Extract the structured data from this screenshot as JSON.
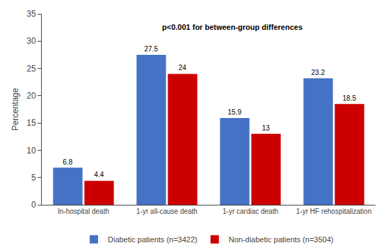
{
  "chart_data": {
    "type": "bar",
    "categories": [
      "In-hospital death",
      "1-yr all-cause death",
      "1-yr cardiac death",
      "1-yr HF rehospitalization"
    ],
    "series": [
      {
        "name": "Diabetic patients (n=3422)",
        "color": "#4472C4",
        "values": [
          6.8,
          27.5,
          15.9,
          23.2
        ]
      },
      {
        "name": "Non-diabetic patients (n=3504)",
        "color": "#CC0000",
        "values": [
          4.4,
          24,
          13,
          18.5
        ]
      }
    ],
    "ylabel": "Percentage",
    "ylim": [
      0,
      35
    ],
    "yticks": [
      0,
      5,
      10,
      15,
      20,
      25,
      30,
      35
    ],
    "annotations": [
      "p<0.001 for between-group differences"
    ],
    "data_labels": true,
    "grid": false,
    "legend": "bottom"
  }
}
